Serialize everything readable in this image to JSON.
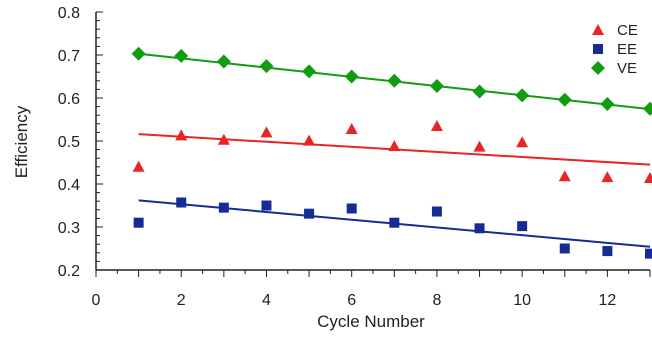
{
  "chart_data": {
    "type": "scatter",
    "xlabel": "Cycle Number",
    "ylabel": "Efficiency",
    "xlim": [
      0,
      13
    ],
    "ylim": [
      0.2,
      0.8
    ],
    "x_ticks": [
      0,
      2,
      4,
      6,
      8,
      10,
      12
    ],
    "y_ticks": [
      0.2,
      0.3,
      0.4,
      0.5,
      0.6,
      0.7,
      0.8
    ],
    "legend_position": "top-right",
    "grid": false,
    "series": [
      {
        "name": "CE",
        "marker": "triangle",
        "color": "#e82424",
        "x": [
          1,
          2,
          3,
          4,
          5,
          6,
          7,
          8,
          9,
          10,
          11,
          12,
          13
        ],
        "y": [
          0.44,
          0.513,
          0.503,
          0.52,
          0.501,
          0.528,
          0.488,
          0.535,
          0.487,
          0.497,
          0.418,
          0.416,
          0.414
        ],
        "trend": [
          [
            1,
            0.516
          ],
          [
            13,
            0.445
          ]
        ]
      },
      {
        "name": "EE",
        "marker": "square",
        "color": "#142c94",
        "x": [
          1,
          2,
          3,
          4,
          5,
          6,
          7,
          8,
          9,
          10,
          11,
          12,
          13
        ],
        "y": [
          0.31,
          0.357,
          0.345,
          0.35,
          0.331,
          0.343,
          0.31,
          0.336,
          0.297,
          0.302,
          0.25,
          0.244,
          0.238
        ],
        "trend": [
          [
            1,
            0.362
          ],
          [
            13,
            0.254
          ]
        ]
      },
      {
        "name": "VE",
        "marker": "diamond",
        "color": "#119c11",
        "x": [
          1,
          2,
          3,
          4,
          5,
          6,
          7,
          8,
          9,
          10,
          11,
          12,
          13
        ],
        "y": [
          0.703,
          0.698,
          0.685,
          0.674,
          0.662,
          0.65,
          0.64,
          0.628,
          0.615,
          0.606,
          0.596,
          0.586,
          0.575
        ],
        "trend": [
          [
            1,
            0.703
          ],
          [
            13,
            0.574
          ]
        ]
      }
    ]
  }
}
